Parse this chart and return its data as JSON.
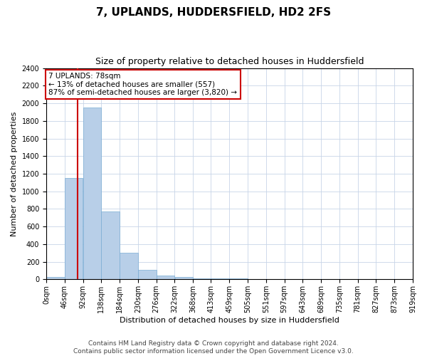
{
  "title": "7, UPLANDS, HUDDERSFIELD, HD2 2FS",
  "subtitle": "Size of property relative to detached houses in Huddersfield",
  "xlabel": "Distribution of detached houses by size in Huddersfield",
  "ylabel": "Number of detached properties",
  "footer_line1": "Contains HM Land Registry data © Crown copyright and database right 2024.",
  "footer_line2": "Contains public sector information licensed under the Open Government Licence v3.0.",
  "bin_edges": [
    0,
    46,
    92,
    138,
    184,
    230,
    276,
    322,
    368,
    413,
    459,
    505,
    551,
    597,
    643,
    689,
    735,
    781,
    827,
    873,
    919
  ],
  "bar_heights": [
    30,
    1150,
    1950,
    770,
    300,
    105,
    40,
    25,
    15,
    10,
    8,
    5,
    4,
    3,
    2,
    2,
    2,
    2,
    1,
    1
  ],
  "bar_color": "#b8cfe8",
  "bar_edge_color": "#7aadd4",
  "property_size": 78,
  "vline_color": "#cc0000",
  "annotation_text": "7 UPLANDS: 78sqm\n← 13% of detached houses are smaller (557)\n87% of semi-detached houses are larger (3,820) →",
  "annotation_box_color": "#cc0000",
  "ylim": [
    0,
    2400
  ],
  "ytick_interval": 200,
  "background_color": "#ffffff",
  "grid_color": "#c8d4e8",
  "title_fontsize": 11,
  "subtitle_fontsize": 9,
  "axis_label_fontsize": 8,
  "tick_fontsize": 7,
  "annotation_fontsize": 7.5,
  "footer_fontsize": 6.5
}
